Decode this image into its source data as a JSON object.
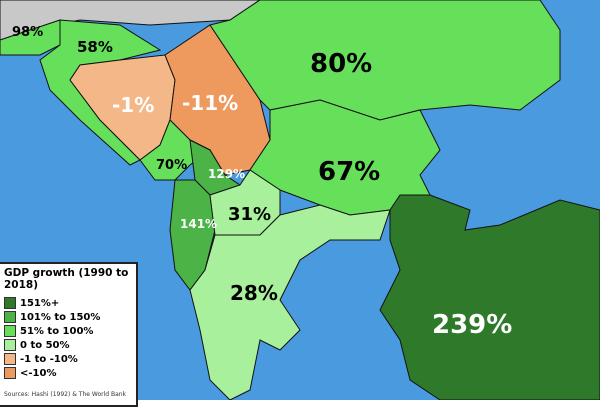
{
  "legend": {
    "title": "GDP growth (1990 to 2018)",
    "items": [
      {
        "label": "151%+",
        "color": "#2f7a2a"
      },
      {
        "label": "101% to 150%",
        "color": "#4cb447"
      },
      {
        "label": "51% to 100%",
        "color": "#66e05a"
      },
      {
        "label": "0 to 50%",
        "color": "#a8f09c"
      },
      {
        "label": "-1 to -10%",
        "color": "#f4b888"
      },
      {
        "label": "<-10%",
        "color": "#ee9a5e"
      }
    ],
    "sources": "Sources: Hashi (1992) & The World Bank"
  },
  "countries": {
    "slovenia": "98%",
    "croatia": "58%",
    "bosnia": "-1%",
    "serbia": "-11%",
    "romania": "80%",
    "montenegro": "70%",
    "kosovo": "129%",
    "albania": "141%",
    "macedonia": "31%",
    "bulgaria": "67%",
    "greece": "28%",
    "turkey": "239%"
  },
  "colors": {
    "sea": "#4a9ae0",
    "outside": "#c8c8c8"
  }
}
